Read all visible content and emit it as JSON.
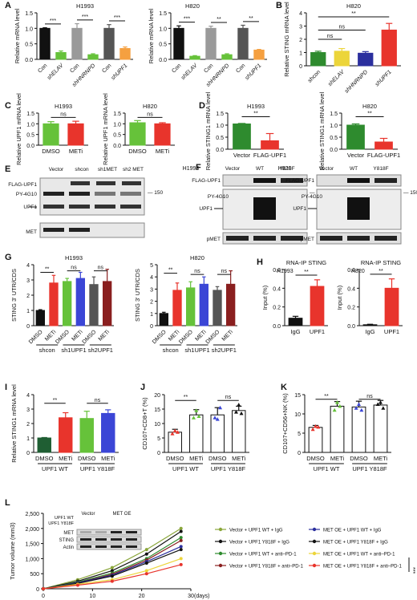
{
  "colors": {
    "black": "#111111",
    "darkgray": "#555555",
    "gray": "#9a9a9a",
    "lightgray": "#c8c8c8",
    "green": "#2e8b2e",
    "lightgreen": "#66c23a",
    "darkgreen": "#1f5e33",
    "yellow": "#ecd53a",
    "blue": "#2b2f9e",
    "royal": "#3b46d6",
    "red": "#e8342c",
    "orange": "#f5a040",
    "maroon": "#8a1f1f",
    "olive": "#8aa63a"
  },
  "panels": {
    "A1": {
      "label": "A",
      "title": "H1993",
      "ylabel": "Relative mRNA level"
    },
    "A2": {
      "title": "H820",
      "ylabel": "Relative mRNA level"
    },
    "B": {
      "label": "B",
      "title": "H820",
      "ylabel": "Relative STING mRNA level"
    },
    "C1": {
      "label": "C",
      "title": "H1993",
      "ylabel": "Relative UPF1 mRNA level"
    },
    "C2": {
      "title": "H820",
      "ylabel": "Relative UPF1 mRNA level"
    },
    "D1": {
      "label": "D",
      "title": "H1993",
      "ylabel": "Relative STING1 mRNA level"
    },
    "D2": {
      "title": "H820",
      "ylabel": "Relative STING1 mRNA level"
    },
    "E": {
      "label": "E",
      "lanes": [
        "Vector",
        "shcon",
        "sh1MET",
        "sh2 MET"
      ],
      "rows": [
        "FLAG-UPF1",
        "PY-4G10",
        "UPF1",
        "MET"
      ],
      "marker": "150"
    },
    "F": {
      "label": "F",
      "left_title": "H1993",
      "right_title": "H820",
      "lanes": [
        "Vector",
        "WT",
        "Y818F"
      ],
      "rows": [
        "FLAG-UPF1",
        "PY-4G10",
        "UPF1",
        "pMET"
      ],
      "marker": "150"
    },
    "G1": {
      "label": "G",
      "title": "H1993",
      "ylabel": "STING 3' UTR/CDS"
    },
    "G2": {
      "title": "H820",
      "ylabel": "STING 3' UTR/CDS"
    },
    "H1": {
      "label": "H",
      "title": "RNA-IP STING",
      "subtitle": "H1993",
      "ylabel": "Input (%)"
    },
    "H2": {
      "title": "RNA-IP STING",
      "subtitle": "H820",
      "ylabel": "Input (%)"
    },
    "I": {
      "label": "I",
      "ylabel": "Relative STING1 mRNA level"
    },
    "J": {
      "label": "J",
      "ylabel": "CD107+CD8+T (%)"
    },
    "K": {
      "label": "K",
      "ylabel": "CD107+CD56+NK (%)"
    },
    "L": {
      "label": "L",
      "xlabel": "(days)",
      "ylabel": "Tumor volume (mm3)",
      "inset": {
        "groups": [
          "Vector",
          "MET OE"
        ],
        "row_labels": [
          "UPF1 WT",
          "UPF1 Y818F"
        ],
        "blots": [
          "MET",
          "STING",
          "Actin"
        ]
      },
      "significance": "***"
    }
  },
  "chart_data": [
    {
      "id": "A1",
      "type": "bar",
      "categories": [
        "Con",
        "shELAV",
        "Con",
        "shHNRNPD",
        "Con",
        "shUPF1"
      ],
      "values": [
        1.0,
        0.22,
        1.0,
        0.15,
        1.0,
        0.35
      ],
      "errors": [
        0.02,
        0.05,
        0.15,
        0.03,
        0.12,
        0.05
      ],
      "ylim": [
        0,
        1.5
      ],
      "yticks": [
        0.0,
        0.5,
        1.0,
        1.5
      ],
      "colors": [
        "#111111",
        "#66c23a",
        "#9a9a9a",
        "#66c23a",
        "#555555",
        "#f5a040"
      ],
      "sig": [
        {
          "a": 0,
          "b": 1,
          "t": "***"
        },
        {
          "a": 2,
          "b": 3,
          "t": "***"
        },
        {
          "a": 4,
          "b": 5,
          "t": "***"
        }
      ]
    },
    {
      "id": "A2",
      "type": "bar",
      "categories": [
        "Con",
        "shELAV",
        "Con",
        "shHNRNPD",
        "Con",
        "shUPF1"
      ],
      "values": [
        1.0,
        0.1,
        1.0,
        0.15,
        1.0,
        0.3
      ],
      "errors": [
        0.08,
        0.02,
        0.07,
        0.03,
        0.1,
        0.02
      ],
      "ylim": [
        0,
        1.5
      ],
      "yticks": [
        0.0,
        0.5,
        1.0,
        1.5
      ],
      "colors": [
        "#111111",
        "#66c23a",
        "#9a9a9a",
        "#66c23a",
        "#555555",
        "#f5a040"
      ],
      "sig": [
        {
          "a": 0,
          "b": 1,
          "t": "***"
        },
        {
          "a": 2,
          "b": 3,
          "t": "**"
        },
        {
          "a": 4,
          "b": 5,
          "t": "**"
        }
      ]
    },
    {
      "id": "B",
      "type": "bar",
      "categories": [
        "shcon",
        "shELAV",
        "shHNRNPD",
        "shUPF1"
      ],
      "values": [
        1.0,
        1.1,
        0.95,
        2.7
      ],
      "errors": [
        0.1,
        0.2,
        0.12,
        0.5
      ],
      "ylim": [
        0,
        4
      ],
      "yticks": [
        0,
        1,
        2,
        3,
        4
      ],
      "colors": [
        "#2e8b2e",
        "#ecd53a",
        "#2b2f9e",
        "#e8342c"
      ],
      "sig": [
        {
          "a": 0,
          "b": 3,
          "t": "**",
          "lvl": 3.7
        },
        {
          "a": 0,
          "b": 2,
          "t": "ns",
          "lvl": 2.7
        },
        {
          "a": 0,
          "b": 1,
          "t": "ns",
          "lvl": 2.0
        }
      ]
    },
    {
      "id": "C1",
      "type": "bar",
      "categories": [
        "DMSO",
        "METi"
      ],
      "values": [
        1.0,
        1.0
      ],
      "errors": [
        0.1,
        0.12
      ],
      "ylim": [
        0,
        1.5
      ],
      "yticks": [
        0.0,
        0.5,
        1.0,
        1.5
      ],
      "colors": [
        "#66c23a",
        "#e8342c"
      ],
      "sig": [
        {
          "a": 0,
          "b": 1,
          "t": "ns",
          "lvl": 1.3
        }
      ]
    },
    {
      "id": "C2",
      "type": "bar",
      "categories": [
        "DMSO",
        "METi"
      ],
      "values": [
        1.05,
        1.0
      ],
      "errors": [
        0.1,
        0.05
      ],
      "ylim": [
        0,
        1.5
      ],
      "yticks": [
        0.0,
        0.5,
        1.0,
        1.5
      ],
      "colors": [
        "#66c23a",
        "#e8342c"
      ],
      "sig": [
        {
          "a": 0,
          "b": 1,
          "t": "ns",
          "lvl": 1.3
        }
      ]
    },
    {
      "id": "D1",
      "type": "bar",
      "categories": [
        "Vector",
        "FLAG-UPF1"
      ],
      "values": [
        1.05,
        0.35
      ],
      "errors": [
        0.02,
        0.3
      ],
      "ylim": [
        0,
        1.5
      ],
      "yticks": [
        0.0,
        0.5,
        1.0,
        1.5
      ],
      "colors": [
        "#2e8b2e",
        "#e8342c"
      ],
      "sig": [
        {
          "a": 0,
          "b": 1,
          "t": "**",
          "lvl": 1.35
        }
      ]
    },
    {
      "id": "D2",
      "type": "bar",
      "categories": [
        "Vector",
        "FLAG-UPF1"
      ],
      "values": [
        1.0,
        0.3
      ],
      "errors": [
        0.05,
        0.15
      ],
      "ylim": [
        0,
        1.5
      ],
      "yticks": [
        0.0,
        0.5,
        1.0,
        1.5
      ],
      "colors": [
        "#2e8b2e",
        "#e8342c"
      ],
      "sig": [
        {
          "a": 0,
          "b": 1,
          "t": "**",
          "lvl": 1.35
        }
      ]
    },
    {
      "id": "G1",
      "type": "bar",
      "categories": [
        "DMSO",
        "METi",
        "DMSO",
        "METi",
        "DMSO",
        "METi"
      ],
      "groups": [
        "shcon",
        "sh1UPF1",
        "sh2UPF1"
      ],
      "values": [
        1.0,
        2.8,
        2.9,
        3.1,
        2.7,
        2.9
      ],
      "errors": [
        0.05,
        0.5,
        0.2,
        0.4,
        0.5,
        0.8
      ],
      "ylim": [
        0,
        4
      ],
      "yticks": [
        0,
        1,
        2,
        3,
        4
      ],
      "colors": [
        "#111111",
        "#e8342c",
        "#66c23a",
        "#3b46d6",
        "#555555",
        "#8a1f1f"
      ],
      "sig": [
        {
          "a": 0,
          "b": 1,
          "t": "**",
          "lvl": 3.5
        },
        {
          "a": 2,
          "b": 3,
          "t": "ns",
          "lvl": 3.6
        },
        {
          "a": 4,
          "b": 5,
          "t": "ns",
          "lvl": 3.6
        }
      ]
    },
    {
      "id": "G2",
      "type": "bar",
      "categories": [
        "DMSO",
        "METi",
        "DMSO",
        "METi",
        "DMSO",
        "METi"
      ],
      "groups": [
        "shcon",
        "sh1UPF1",
        "sh2UPF1"
      ],
      "values": [
        1.0,
        2.9,
        3.1,
        3.4,
        2.9,
        3.4
      ],
      "errors": [
        0.1,
        0.6,
        0.5,
        0.6,
        0.3,
        1.1
      ],
      "ylim": [
        0,
        5
      ],
      "yticks": [
        0,
        1,
        2,
        3,
        4,
        5
      ],
      "colors": [
        "#111111",
        "#e8342c",
        "#66c23a",
        "#3b46d6",
        "#555555",
        "#8a1f1f"
      ],
      "sig": [
        {
          "a": 0,
          "b": 1,
          "t": "**",
          "lvl": 4.3
        },
        {
          "a": 2,
          "b": 3,
          "t": "ns",
          "lvl": 4.2
        },
        {
          "a": 4,
          "b": 5,
          "t": "ns",
          "lvl": 4.2
        }
      ]
    },
    {
      "id": "H1",
      "type": "bar",
      "categories": [
        "IgG",
        "UPF1"
      ],
      "values": [
        0.08,
        0.42
      ],
      "errors": [
        0.02,
        0.07
      ],
      "ylim": [
        0,
        0.6
      ],
      "yticks": [
        0.0,
        0.2,
        0.4,
        0.6
      ],
      "colors": [
        "#111111",
        "#e8342c"
      ],
      "sig": [
        {
          "a": 0,
          "b": 1,
          "t": "**",
          "lvl": 0.54
        }
      ]
    },
    {
      "id": "H2",
      "type": "bar",
      "categories": [
        "IgG",
        "UPF1"
      ],
      "values": [
        0.01,
        0.4
      ],
      "errors": [
        0.005,
        0.1
      ],
      "ylim": [
        0,
        0.6
      ],
      "yticks": [
        0.0,
        0.2,
        0.4,
        0.6
      ],
      "colors": [
        "#111111",
        "#e8342c"
      ],
      "sig": [
        {
          "a": 0,
          "b": 1,
          "t": "**",
          "lvl": 0.55
        }
      ]
    },
    {
      "id": "I",
      "type": "bar",
      "categories": [
        "DMSO",
        "METi",
        "DMSO",
        "METi"
      ],
      "groups": [
        "UPF1 WT",
        "UPF1 Y818F"
      ],
      "values": [
        1.0,
        2.4,
        2.35,
        2.7
      ],
      "errors": [
        0.03,
        0.35,
        0.5,
        0.25
      ],
      "ylim": [
        0,
        4
      ],
      "yticks": [
        0,
        1,
        2,
        3,
        4
      ],
      "colors": [
        "#1f5e33",
        "#e8342c",
        "#66c23a",
        "#3b46d6"
      ],
      "sig": [
        {
          "a": 0,
          "b": 1,
          "t": "**",
          "lvl": 3.4
        },
        {
          "a": 2,
          "b": 3,
          "t": "ns",
          "lvl": 3.4
        }
      ]
    },
    {
      "id": "J",
      "type": "bar",
      "categories": [
        "DMSO",
        "METi",
        "DMSO",
        "METi"
      ],
      "groups": [
        "UPF1 WT",
        "UPF1 Y818F"
      ],
      "values": [
        7.0,
        13.0,
        13.0,
        14.5
      ],
      "errors": [
        1.0,
        1.8,
        2.5,
        1.5
      ],
      "points": [
        [
          6.5,
          7.5,
          7.0
        ],
        [
          12.0,
          14.5,
          12.5
        ],
        [
          12.0,
          11.5,
          15.5
        ],
        [
          14.0,
          16.5,
          13.5
        ]
      ],
      "ylim": [
        0,
        20
      ],
      "yticks": [
        0,
        5,
        10,
        15,
        20
      ],
      "colors": [
        "#e8342c",
        "#66c23a",
        "#3b46d6",
        "#111111"
      ],
      "sig": [
        {
          "a": 0,
          "b": 1,
          "t": "**",
          "lvl": 18
        },
        {
          "a": 2,
          "b": 3,
          "t": "ns",
          "lvl": 18
        }
      ]
    },
    {
      "id": "K",
      "type": "bar",
      "categories": [
        "DMSO",
        "METi",
        "DMSO",
        "METi"
      ],
      "groups": [
        "UPF1 WT",
        "UPF1 Y818F"
      ],
      "values": [
        6.5,
        12.0,
        11.8,
        12.3
      ],
      "errors": [
        0.5,
        1.2,
        1.5,
        1.2
      ],
      "points": [
        [
          6.0,
          6.8,
          6.6
        ],
        [
          11.0,
          13.0,
          12.0
        ],
        [
          11.5,
          12.5,
          11.0
        ],
        [
          12.5,
          13.0,
          11.5
        ]
      ],
      "ylim": [
        0,
        15
      ],
      "yticks": [
        0,
        5,
        10,
        15
      ],
      "colors": [
        "#e8342c",
        "#66c23a",
        "#3b46d6",
        "#111111"
      ],
      "sig": [
        {
          "a": 0,
          "b": 1,
          "t": "**",
          "lvl": 13.8
        },
        {
          "a": 2,
          "b": 3,
          "t": "ns",
          "lvl": 13.8
        }
      ]
    },
    {
      "id": "L",
      "type": "line",
      "xlabel": "(days)",
      "ylabel": "Tumor volume (mm3)",
      "xlim": [
        0,
        30
      ],
      "xticks": [
        0,
        10,
        20,
        30
      ],
      "ylim": [
        0,
        2500
      ],
      "yticks": [
        0,
        500,
        1000,
        1500,
        2000,
        2500
      ],
      "x": [
        0,
        7,
        14,
        21,
        28
      ],
      "series": [
        {
          "name": "Vector + UPF1 WT + IgG",
          "color": "#8aa63a",
          "values": [
            0,
            300,
            700,
            1300,
            2000
          ]
        },
        {
          "name": "Vector + UPF1 Y818F + IgG",
          "color": "#111111",
          "values": [
            0,
            250,
            600,
            1150,
            1900
          ]
        },
        {
          "name": "Vector + UPF1 WT + anti–PD-1",
          "color": "#2e8b2e",
          "values": [
            0,
            220,
            520,
            1000,
            1700
          ]
        },
        {
          "name": "Vector + UPF1 Y818F + anti–PD-1",
          "color": "#8a1f1f",
          "values": [
            0,
            200,
            480,
            950,
            1600
          ]
        },
        {
          "name": "MET OE + UPF1 WT + IgG",
          "color": "#2b2f9e",
          "values": [
            0,
            200,
            450,
            900,
            1400
          ]
        },
        {
          "name": "MET OE + UPF1 Y818F + IgG",
          "color": "#111111",
          "values": [
            0,
            180,
            420,
            850,
            1300
          ]
        },
        {
          "name": "MET OE + UPF1 WT + anti–PD-1",
          "color": "#ecd53a",
          "values": [
            0,
            150,
            300,
            600,
            1000
          ]
        },
        {
          "name": "MET OE + UPF1 Y818F + anti–PD-1",
          "color": "#e8342c",
          "values": [
            0,
            120,
            250,
            500,
            800
          ]
        }
      ]
    }
  ]
}
